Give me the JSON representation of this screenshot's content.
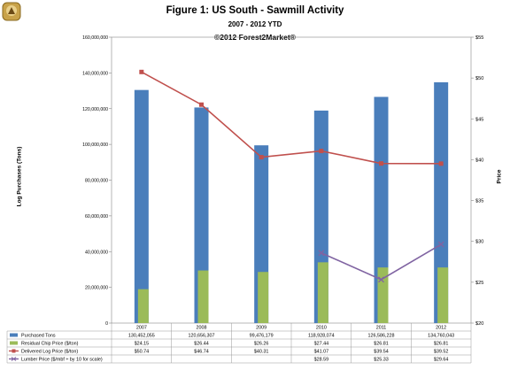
{
  "header": {
    "title": "Figure 1: US South - Sawmill Activity",
    "subtitle": "2007 - 2012 YTD",
    "copyright": "©2012 Forest2Market®",
    "logo_icon": "forest2market-logo-icon"
  },
  "chart_data": {
    "type": "bar",
    "categories": [
      "2007",
      "2008",
      "2009",
      "2010",
      "2011",
      "2012"
    ],
    "ylabel": "Log Purchases (Tons)",
    "y2label": "Price",
    "ylim": [
      0,
      160000000
    ],
    "y_ticks": [
      "0",
      "20,000,000",
      "40,000,000",
      "60,000,000",
      "80,000,000",
      "100,000,000",
      "120,000,000",
      "140,000,000",
      "160,000,000"
    ],
    "y2lim": [
      20,
      55
    ],
    "y2_ticks": [
      "$20",
      "$25",
      "$30",
      "$35",
      "$40",
      "$45",
      "$50",
      "$55"
    ],
    "grid": false,
    "legend": "table-bottom",
    "series": [
      {
        "name": "Purchased Tons",
        "kind": "bar",
        "axis": "left",
        "color": "#4a7ebb",
        "values": [
          130452055,
          120656307,
          99476179,
          118928074,
          126586228,
          134760043
        ],
        "labels": [
          "130,452,055",
          "120,656,307",
          "99,476,179",
          "118,928,074",
          "126,586,228",
          "134,760,043"
        ]
      },
      {
        "name": "Residual Chip Price ($/ton)",
        "kind": "bar",
        "axis": "right",
        "color": "#9bbb59",
        "values": [
          24.15,
          26.44,
          26.26,
          27.44,
          26.81,
          26.81
        ],
        "labels": [
          "$24.15",
          "$26.44",
          "$26.26",
          "$27.44",
          "$26.81",
          "$26.81"
        ]
      },
      {
        "name": "Delivered Log Price ($/ton)",
        "kind": "line",
        "axis": "right",
        "color": "#c0504d",
        "values": [
          50.74,
          46.74,
          40.31,
          41.07,
          39.54,
          39.52
        ],
        "labels": [
          "$50.74",
          "$46.74",
          "$40.31",
          "$41.07",
          "$39.54",
          "$39.52"
        ]
      },
      {
        "name": "Lumber Price ($/mbf ÷ by 10 for scale)",
        "kind": "line",
        "axis": "right",
        "color": "#8064a2",
        "values": [
          null,
          null,
          null,
          28.59,
          25.33,
          29.64
        ],
        "labels": [
          "",
          "",
          "",
          "$28.59",
          "$25.33",
          "$29.64"
        ]
      }
    ]
  }
}
